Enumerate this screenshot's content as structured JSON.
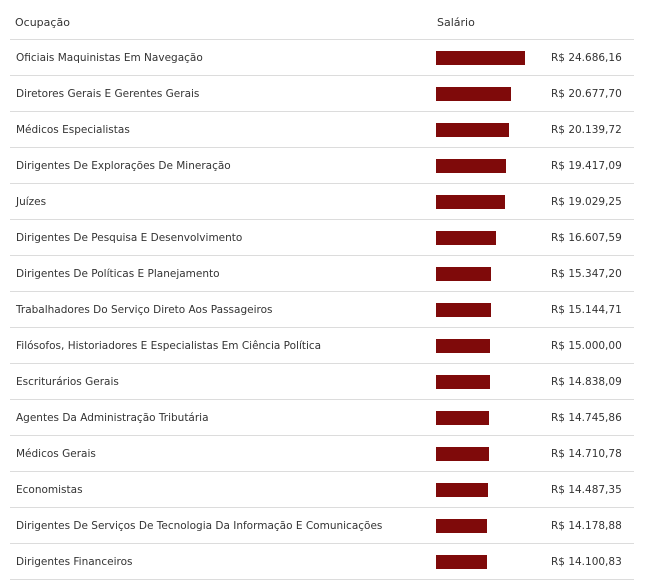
{
  "header": {
    "occupation": "Ocupação",
    "salary": "Salário"
  },
  "colors": {
    "bar": "#7f0a0a"
  },
  "chart_data": {
    "type": "bar",
    "orientation": "horizontal",
    "categories": [
      "Oficiais Maquinistas Em Navegação",
      "Diretores Gerais E Gerentes Gerais",
      "Médicos Especialistas",
      "Dirigentes De Explorações De Mineração",
      "Juízes",
      "Dirigentes De Pesquisa E Desenvolvimento",
      "Dirigentes De Políticas E Planejamento",
      "Trabalhadores Do Serviço Direto Aos Passageiros",
      "Filósofos, Historiadores E Especialistas Em Ciência Política",
      "Escriturários Gerais",
      "Agentes Da Administração Tributária",
      "Médicos Gerais",
      "Economistas",
      "Dirigentes De Serviços De Tecnologia Da Informação E Comunicações",
      "Dirigentes Financeiros"
    ],
    "values": [
      24686.16,
      20677.7,
      20139.72,
      19417.09,
      19029.25,
      16607.59,
      15347.2,
      15144.71,
      15000.0,
      14838.09,
      14745.86,
      14710.78,
      14487.35,
      14178.88,
      14100.83
    ],
    "value_labels": [
      "R$ 24.686,16",
      "R$ 20.677,70",
      "R$ 20.139,72",
      "R$ 19.417,09",
      "R$ 19.029,25",
      "R$ 16.607,59",
      "R$ 15.347,20",
      "R$ 15.144,71",
      "R$ 15.000,00",
      "R$ 14.838,09",
      "R$ 14.745,86",
      "R$ 14.710,78",
      "R$ 14.487,35",
      "R$ 14.178,88",
      "R$ 14.100,83"
    ],
    "title": "",
    "xlabel": "",
    "ylabel": "",
    "grid": false,
    "legend": "none"
  }
}
